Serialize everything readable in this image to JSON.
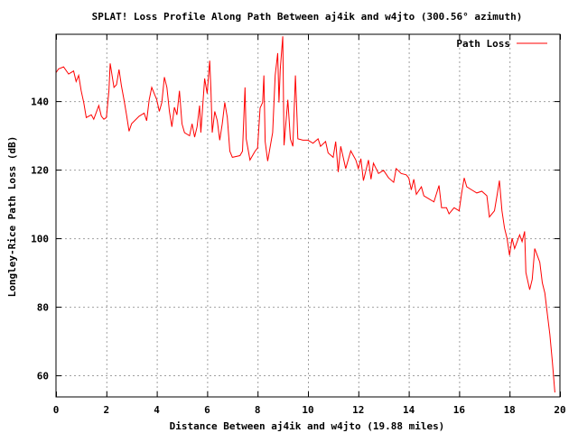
{
  "chart_data": {
    "type": "line",
    "title": "SPLAT! Loss Profile Along Path Between aj4ik and w4jto (300.56° azimuth)",
    "xlabel": "Distance Between aj4ik and w4jto (19.88 miles)",
    "ylabel": "Longley-Rice Path Loss (dB)",
    "xlim": [
      0,
      20
    ],
    "ylim": [
      53.7,
      159.5
    ],
    "xticks": [
      0,
      2,
      4,
      6,
      8,
      10,
      12,
      14,
      16,
      18,
      20
    ],
    "yticks": [
      60,
      80,
      100,
      120,
      140
    ],
    "grid": true,
    "legend_position": "top-right",
    "series": [
      {
        "name": "Path Loss",
        "color": "#ff0000",
        "x": [
          0,
          0.1,
          0.3,
          0.5,
          0.7,
          0.8,
          0.9,
          1.0,
          1.05,
          1.1,
          1.2,
          1.4,
          1.5,
          1.7,
          1.8,
          1.9,
          2.0,
          2.1,
          2.15,
          2.3,
          2.4,
          2.5,
          2.6,
          2.7,
          2.8,
          2.9,
          3.0,
          3.3,
          3.5,
          3.6,
          3.7,
          3.8,
          4.0,
          4.1,
          4.2,
          4.3,
          4.4,
          4.5,
          4.6,
          4.7,
          4.8,
          4.9,
          5.0,
          5.1,
          5.3,
          5.4,
          5.5,
          5.6,
          5.7,
          5.75,
          5.9,
          6.0,
          6.1,
          6.15,
          6.2,
          6.3,
          6.4,
          6.5,
          6.6,
          6.7,
          6.8,
          6.9,
          7.0,
          7.3,
          7.4,
          7.5,
          7.55,
          7.7,
          7.9,
          8.0,
          8.1,
          8.2,
          8.25,
          8.3,
          8.4,
          8.6,
          8.7,
          8.8,
          8.85,
          8.9,
          9.0,
          9.05,
          9.2,
          9.3,
          9.4,
          9.5,
          9.6,
          9.8,
          10.0,
          10.2,
          10.4,
          10.5,
          10.7,
          10.8,
          11.0,
          11.1,
          11.2,
          11.3,
          11.5,
          11.7,
          11.9,
          12.0,
          12.1,
          12.2,
          12.4,
          12.5,
          12.6,
          12.8,
          13.0,
          13.2,
          13.4,
          13.5,
          13.7,
          13.9,
          14.0,
          14.1,
          14.2,
          14.3,
          14.5,
          14.6,
          14.8,
          15.0,
          15.2,
          15.3,
          15.5,
          15.6,
          15.8,
          16.0,
          16.1,
          16.2,
          16.3,
          16.5,
          16.7,
          16.9,
          17.1,
          17.2,
          17.4,
          17.5,
          17.6,
          17.7,
          17.8,
          17.9,
          18.0,
          18.1,
          18.2,
          18.3,
          18.4,
          18.5,
          18.6,
          18.65,
          18.8,
          18.9,
          19.0,
          19.1,
          19.2,
          19.3,
          19.4,
          19.5,
          19.6,
          19.7,
          19.8
        ],
        "y": [
          148.3,
          149.4,
          150,
          147.9,
          148.8,
          145.7,
          147.5,
          143,
          141.3,
          139.6,
          135.2,
          136,
          134.7,
          138.7,
          135.6,
          134.7,
          135.2,
          143,
          151,
          144,
          144.8,
          149.2,
          144.4,
          140.4,
          136,
          131.2,
          133.4,
          135.6,
          136.5,
          134.3,
          140.4,
          144,
          140.4,
          137,
          139.6,
          147,
          144,
          137,
          132.5,
          138.2,
          136,
          143,
          133.4,
          130.8,
          129.9,
          133.4,
          129.5,
          132.5,
          138.7,
          130.8,
          146.6,
          142.2,
          151.8,
          143,
          130.8,
          137,
          134.3,
          128.6,
          133.4,
          139.6,
          135.2,
          125.4,
          123.6,
          124.1,
          125.4,
          144,
          129,
          122.8,
          125.4,
          126.3,
          138,
          139.6,
          147.5,
          128.2,
          122.5,
          130.8,
          147.5,
          154,
          139.6,
          149.2,
          158.9,
          127.1,
          140.4,
          129,
          126.8,
          147.5,
          129,
          128.6,
          128.6,
          127.7,
          129,
          126.8,
          128.2,
          124.9,
          123.6,
          128.2,
          119.3,
          126.8,
          120.3,
          125.5,
          122.8,
          120.3,
          123.2,
          116.8,
          122.8,
          117.2,
          121.9,
          118.9,
          119.8,
          117.6,
          116.3,
          120.3,
          118.9,
          118.5,
          117.6,
          114.1,
          117.2,
          112.8,
          115,
          112.4,
          111.5,
          110.6,
          115.4,
          108.9,
          108.9,
          107.1,
          108.9,
          108,
          113.2,
          117.6,
          115,
          114.1,
          113.2,
          113.7,
          112.4,
          106.2,
          108,
          112.4,
          116.8,
          108,
          103,
          100,
          95,
          100,
          97,
          99,
          101,
          99,
          102,
          90,
          85,
          88,
          97,
          95,
          93,
          87,
          84,
          78,
          72,
          64,
          55
        ]
      }
    ]
  }
}
